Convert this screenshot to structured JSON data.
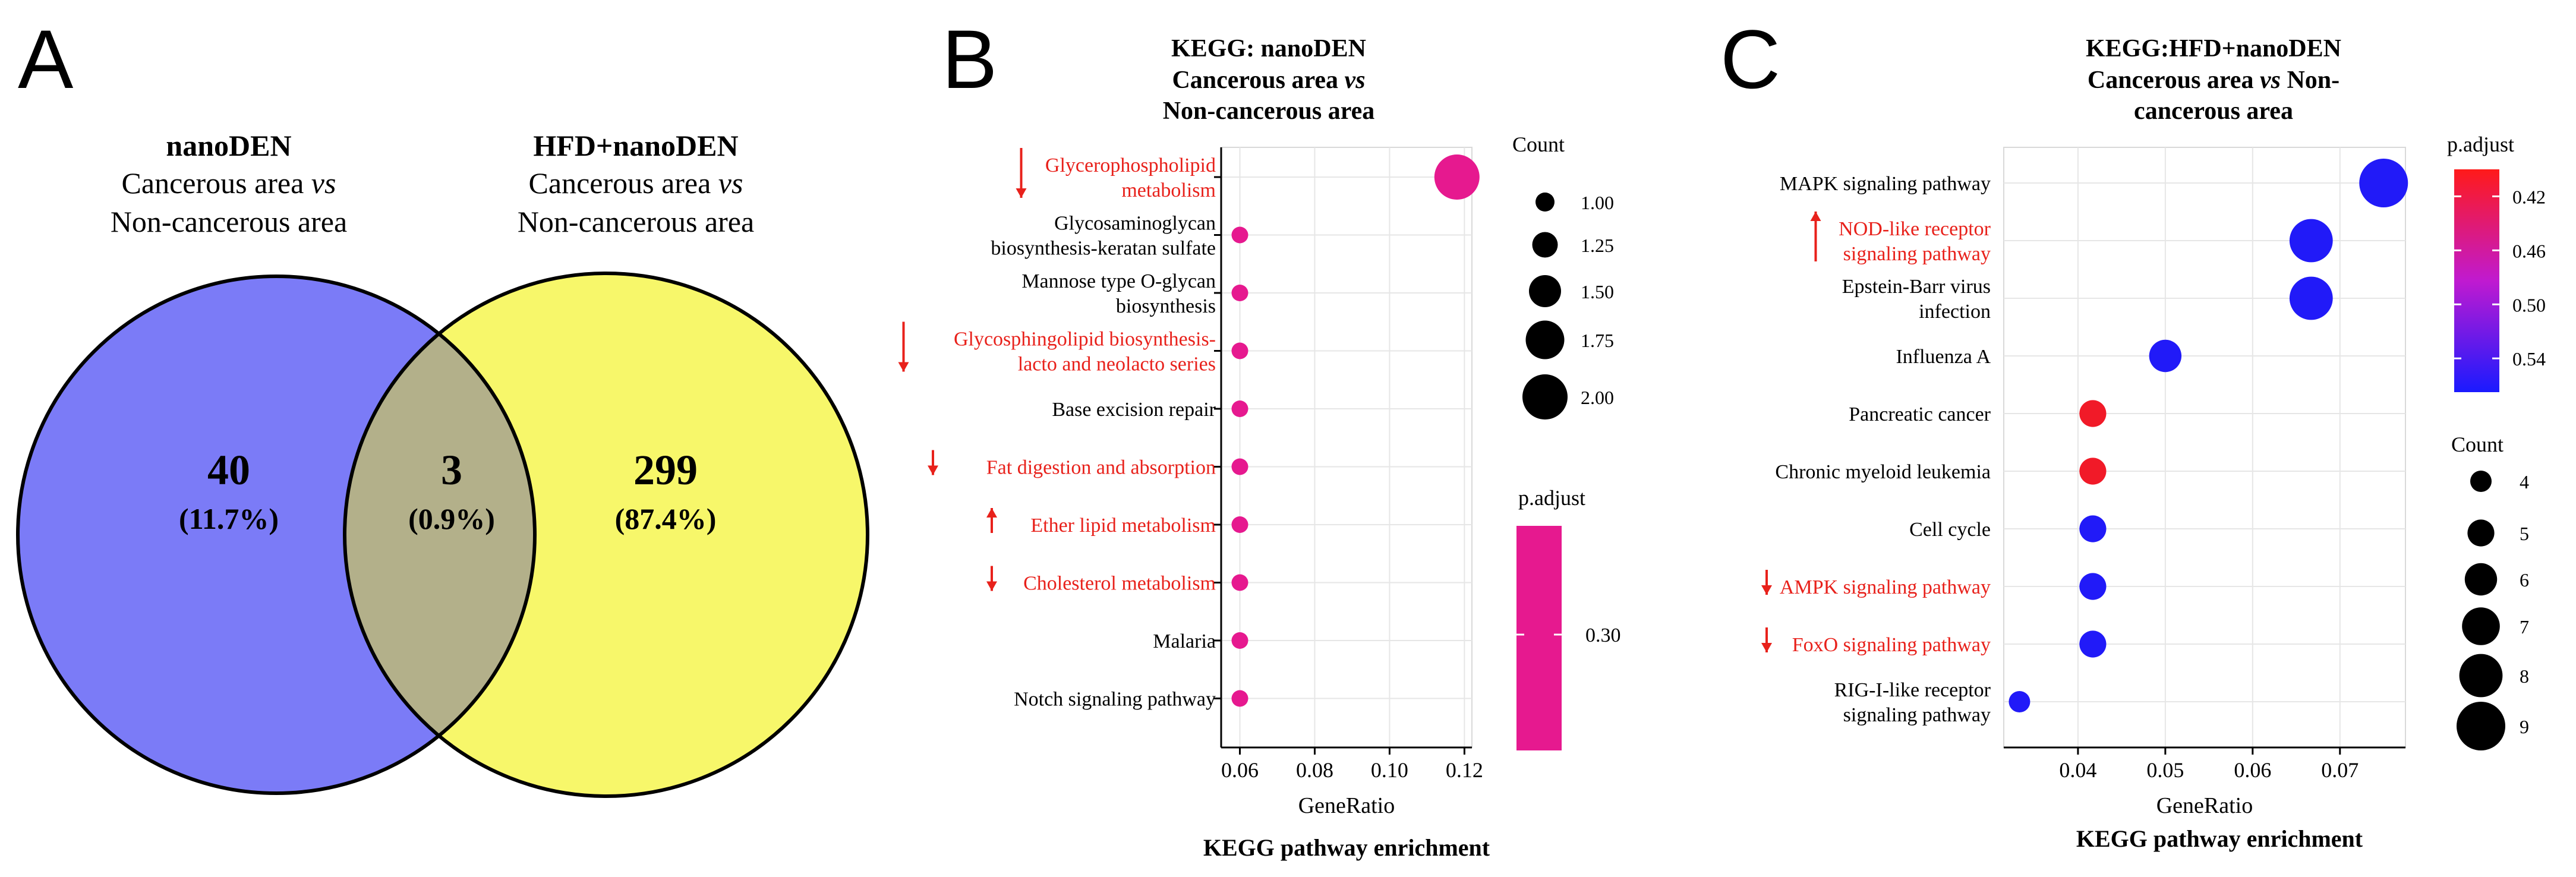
{
  "panels": {
    "a": "A",
    "b": "B",
    "c": "C"
  },
  "colors": {
    "red_label": "#e8211b",
    "magenta": "#e6198f",
    "venn_left": "#7b7bf7",
    "venn_right": "#f7f76a",
    "venn_overlap": "#b3b08a"
  },
  "chart_data": [
    {
      "type": "venn",
      "sets": [
        {
          "name": "nanoDEN",
          "subtitle_a": "Cancerous area ",
          "subtitle_vs": "vs",
          "subtitle_b": "Non-cancerous area",
          "only_count": "40",
          "only_pct": "(11.7%)"
        },
        {
          "name": "HFD+nanoDEN",
          "subtitle_a": "Cancerous area ",
          "subtitle_vs": "vs",
          "subtitle_b": "Non-cancerous area",
          "only_count": "299",
          "only_pct": "(87.4%)"
        }
      ],
      "overlap": {
        "count": "3",
        "pct": "(0.9%)"
      },
      "values": [
        40,
        3,
        299
      ]
    },
    {
      "type": "scatter",
      "title_lines": [
        "KEGG: nanoDEN",
        "Cancerous area vs",
        "Non-cancerous area"
      ],
      "xlabel": "GeneRatio",
      "caption": "KEGG pathway enrichment",
      "xlim": [
        0.055,
        0.122
      ],
      "xticks": [
        0.06,
        0.08,
        0.1,
        0.12
      ],
      "xtick_labels": [
        "0.06",
        "0.08",
        "0.10",
        "0.12"
      ],
      "categories": [
        {
          "lines": [
            "Glycerophospholipid",
            "metabolism"
          ],
          "arrow": "down",
          "highlight": true
        },
        {
          "lines": [
            "Glycosaminoglycan",
            "biosynthesis-keratan sulfate"
          ],
          "arrow": "",
          "highlight": false
        },
        {
          "lines": [
            "Mannose type O-glycan",
            "biosynthesis"
          ],
          "arrow": "",
          "highlight": false
        },
        {
          "lines": [
            "Glycosphingolipid biosynthesis-",
            "lacto and neolacto series"
          ],
          "arrow": "down",
          "highlight": true
        },
        {
          "lines": [
            "Base excision repair"
          ],
          "arrow": "",
          "highlight": false
        },
        {
          "lines": [
            "Fat digestion and absorption"
          ],
          "arrow": "down",
          "highlight": true
        },
        {
          "lines": [
            "Ether lipid metabolism"
          ],
          "arrow": "up",
          "highlight": true
        },
        {
          "lines": [
            "Cholesterol metabolism"
          ],
          "arrow": "down",
          "highlight": true
        },
        {
          "lines": [
            "Malaria"
          ],
          "arrow": "",
          "highlight": false
        },
        {
          "lines": [
            "Notch signaling pathway"
          ],
          "arrow": "",
          "highlight": false
        }
      ],
      "x": [
        0.118,
        0.06,
        0.06,
        0.06,
        0.06,
        0.06,
        0.06,
        0.06,
        0.06,
        0.06
      ],
      "count": [
        2,
        1,
        1,
        1,
        1,
        1,
        1,
        1,
        1,
        1
      ],
      "size_legend": {
        "title": "Count",
        "values": [
          1.0,
          1.25,
          1.5,
          1.75,
          2.0
        ],
        "labels": [
          "1.00",
          "1.25",
          "1.50",
          "1.75",
          "2.00"
        ]
      },
      "color_legend": {
        "title": "p.adjust",
        "labels": [
          "0.30"
        ],
        "color": "#e6198f"
      }
    },
    {
      "type": "scatter",
      "title_lines": [
        "KEGG:HFD+nanoDEN",
        "Cancerous area vs Non-",
        "cancerous area"
      ],
      "xlabel": "GeneRatio",
      "caption": "KEGG pathway enrichment",
      "xlim": [
        0.0315,
        0.0775
      ],
      "xticks": [
        0.04,
        0.05,
        0.06,
        0.07
      ],
      "xtick_labels": [
        "0.04",
        "0.05",
        "0.06",
        "0.07"
      ],
      "categories": [
        {
          "lines": [
            "MAPK signaling pathway"
          ],
          "arrow": "",
          "highlight": false
        },
        {
          "lines": [
            "NOD-like receptor",
            "signaling pathway"
          ],
          "arrow": "up",
          "highlight": true
        },
        {
          "lines": [
            "Epstein-Barr virus",
            "infection"
          ],
          "arrow": "",
          "highlight": false
        },
        {
          "lines": [
            "Influenza A"
          ],
          "arrow": "",
          "highlight": false
        },
        {
          "lines": [
            "Pancreatic cancer"
          ],
          "arrow": "",
          "highlight": false
        },
        {
          "lines": [
            "Chronic myeloid leukemia"
          ],
          "arrow": "",
          "highlight": false
        },
        {
          "lines": [
            "Cell cycle"
          ],
          "arrow": "",
          "highlight": false
        },
        {
          "lines": [
            "AMPK signaling pathway"
          ],
          "arrow": "down",
          "highlight": true
        },
        {
          "lines": [
            "FoxO signaling pathway"
          ],
          "arrow": "down",
          "highlight": true
        },
        {
          "lines": [
            "RIG-I-like receptor",
            "signaling pathway"
          ],
          "arrow": "",
          "highlight": false
        }
      ],
      "x": [
        0.075,
        0.0667,
        0.0667,
        0.05,
        0.0417,
        0.0417,
        0.0417,
        0.0417,
        0.0417,
        0.0333
      ],
      "count": [
        9,
        8,
        8,
        6,
        5,
        5,
        5,
        5,
        5,
        4
      ],
      "p_adjust": [
        0.56,
        0.56,
        0.56,
        0.56,
        0.41,
        0.41,
        0.56,
        0.56,
        0.56,
        0.56
      ],
      "size_legend": {
        "title": "Count",
        "values": [
          4,
          5,
          6,
          7,
          8,
          9
        ],
        "labels": [
          "4",
          "5",
          "6",
          "7",
          "8",
          "9"
        ]
      },
      "color_legend": {
        "title": "p.adjust",
        "values": [
          0.42,
          0.46,
          0.5,
          0.54
        ],
        "labels": [
          "0.42",
          "0.46",
          "0.50",
          "0.54"
        ],
        "range": [
          0.4,
          0.565
        ],
        "low_color": "#ff1a1a",
        "high_color": "#1a1aff"
      }
    }
  ]
}
